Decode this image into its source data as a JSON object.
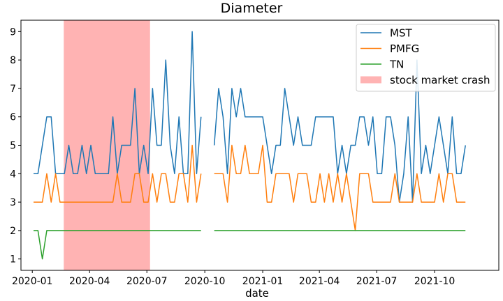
{
  "chart_data": {
    "type": "line",
    "title": "Diameter",
    "xlabel": "date",
    "ylabel": "",
    "ylim": [
      0.6,
      9.4
    ],
    "xlim": [
      "2019-12-14",
      "2022-01-11"
    ],
    "yticks": [
      1,
      2,
      3,
      4,
      5,
      6,
      7,
      8,
      9
    ],
    "xticks": [
      "2020-01",
      "2020-04",
      "2020-07",
      "2020-10",
      "2021-01",
      "2021-04",
      "2021-07",
      "2021-10"
    ],
    "grid": false,
    "legend_position": "top-right",
    "shaded_regions": [
      {
        "name": "stock market crash",
        "start": "2020-02-20",
        "end": "2020-07-06",
        "color": "#ffb3b3"
      }
    ],
    "series": [
      {
        "name": "MST",
        "color": "#1f77b4",
        "segments": [
          [
            [
              "2020-01-03",
              4
            ],
            [
              "2020-01-10",
              4
            ],
            [
              "2020-01-17",
              5
            ],
            [
              "2020-01-24",
              6
            ],
            [
              "2020-01-31",
              6
            ],
            [
              "2020-02-07",
              4
            ],
            [
              "2020-02-14",
              4
            ],
            [
              "2020-02-21",
              4
            ],
            [
              "2020-02-28",
              5
            ],
            [
              "2020-03-06",
              4
            ],
            [
              "2020-03-13",
              4
            ],
            [
              "2020-03-20",
              5
            ],
            [
              "2020-03-27",
              4
            ],
            [
              "2020-04-03",
              5
            ],
            [
              "2020-04-10",
              4
            ],
            [
              "2020-04-17",
              4
            ],
            [
              "2020-04-24",
              4
            ],
            [
              "2020-05-01",
              4
            ],
            [
              "2020-05-08",
              6
            ],
            [
              "2020-05-15",
              4
            ],
            [
              "2020-05-22",
              5
            ],
            [
              "2020-05-29",
              5
            ],
            [
              "2020-06-05",
              5
            ],
            [
              "2020-06-12",
              7
            ],
            [
              "2020-06-19",
              4
            ],
            [
              "2020-06-26",
              5
            ],
            [
              "2020-07-03",
              4
            ],
            [
              "2020-07-10",
              7
            ],
            [
              "2020-07-17",
              5
            ],
            [
              "2020-07-24",
              5
            ],
            [
              "2020-07-31",
              8
            ],
            [
              "2020-08-07",
              5
            ],
            [
              "2020-08-14",
              4
            ],
            [
              "2020-08-21",
              6
            ],
            [
              "2020-08-28",
              4
            ],
            [
              "2020-09-04",
              4
            ],
            [
              "2020-09-11",
              9
            ],
            [
              "2020-09-18",
              4
            ],
            [
              "2020-09-25",
              6
            ]
          ],
          [
            [
              "2020-10-16",
              5
            ],
            [
              "2020-10-23",
              7
            ],
            [
              "2020-10-30",
              6
            ],
            [
              "2020-11-06",
              4
            ],
            [
              "2020-11-13",
              7
            ],
            [
              "2020-11-20",
              6
            ],
            [
              "2020-11-27",
              7
            ],
            [
              "2020-12-04",
              6
            ],
            [
              "2020-12-11",
              6
            ],
            [
              "2020-12-18",
              6
            ],
            [
              "2020-12-25",
              6
            ],
            [
              "2021-01-01",
              6
            ],
            [
              "2021-01-08",
              5
            ],
            [
              "2021-01-15",
              4
            ],
            [
              "2021-01-22",
              5
            ],
            [
              "2021-01-29",
              5
            ],
            [
              "2021-02-05",
              7
            ],
            [
              "2021-02-12",
              6
            ],
            [
              "2021-02-19",
              5
            ],
            [
              "2021-02-26",
              6
            ],
            [
              "2021-03-05",
              5
            ],
            [
              "2021-03-12",
              5
            ],
            [
              "2021-03-19",
              5
            ],
            [
              "2021-03-26",
              6
            ],
            [
              "2021-04-02",
              6
            ],
            [
              "2021-04-09",
              6
            ],
            [
              "2021-04-16",
              6
            ],
            [
              "2021-04-23",
              6
            ],
            [
              "2021-04-30",
              4
            ],
            [
              "2021-05-07",
              5
            ],
            [
              "2021-05-14",
              4
            ],
            [
              "2021-05-21",
              5
            ],
            [
              "2021-05-28",
              5
            ],
            [
              "2021-06-04",
              6
            ],
            [
              "2021-06-11",
              6
            ],
            [
              "2021-06-18",
              5
            ],
            [
              "2021-06-25",
              6
            ],
            [
              "2021-07-02",
              4
            ],
            [
              "2021-07-09",
              4
            ],
            [
              "2021-07-16",
              6
            ],
            [
              "2021-07-23",
              6
            ],
            [
              "2021-07-30",
              5
            ],
            [
              "2021-08-06",
              3
            ],
            [
              "2021-08-13",
              4
            ],
            [
              "2021-08-20",
              6
            ],
            [
              "2021-08-27",
              3
            ],
            [
              "2021-09-03",
              8
            ],
            [
              "2021-09-10",
              4
            ],
            [
              "2021-09-17",
              5
            ],
            [
              "2021-09-24",
              4
            ],
            [
              "2021-10-01",
              5
            ],
            [
              "2021-10-08",
              6
            ],
            [
              "2021-10-15",
              5
            ],
            [
              "2021-10-22",
              4
            ],
            [
              "2021-10-29",
              6
            ],
            [
              "2021-11-05",
              4
            ],
            [
              "2021-11-12",
              4
            ],
            [
              "2021-11-19",
              5
            ]
          ]
        ]
      },
      {
        "name": "PMFG",
        "color": "#ff7f0e",
        "segments": [
          [
            [
              "2020-01-03",
              3
            ],
            [
              "2020-01-10",
              3
            ],
            [
              "2020-01-17",
              3
            ],
            [
              "2020-01-24",
              4
            ],
            [
              "2020-01-31",
              3
            ],
            [
              "2020-02-07",
              4
            ],
            [
              "2020-02-14",
              3
            ],
            [
              "2020-02-21",
              3
            ],
            [
              "2020-02-28",
              3
            ],
            [
              "2020-03-06",
              3
            ],
            [
              "2020-03-13",
              3
            ],
            [
              "2020-03-20",
              3
            ],
            [
              "2020-03-27",
              3
            ],
            [
              "2020-04-03",
              3
            ],
            [
              "2020-04-10",
              3
            ],
            [
              "2020-04-17",
              3
            ],
            [
              "2020-04-24",
              3
            ],
            [
              "2020-05-01",
              3
            ],
            [
              "2020-05-08",
              3
            ],
            [
              "2020-05-15",
              4
            ],
            [
              "2020-05-22",
              3
            ],
            [
              "2020-05-29",
              3
            ],
            [
              "2020-06-05",
              3
            ],
            [
              "2020-06-12",
              4
            ],
            [
              "2020-06-19",
              4
            ],
            [
              "2020-06-26",
              3
            ],
            [
              "2020-07-03",
              3
            ],
            [
              "2020-07-10",
              4
            ],
            [
              "2020-07-17",
              3
            ],
            [
              "2020-07-24",
              4
            ],
            [
              "2020-07-31",
              4
            ],
            [
              "2020-08-07",
              3
            ],
            [
              "2020-08-14",
              3
            ],
            [
              "2020-08-21",
              4
            ],
            [
              "2020-08-28",
              4
            ],
            [
              "2020-09-04",
              3
            ],
            [
              "2020-09-11",
              5
            ],
            [
              "2020-09-18",
              3
            ],
            [
              "2020-09-25",
              4
            ]
          ],
          [
            [
              "2020-10-16",
              4
            ],
            [
              "2020-10-23",
              4
            ],
            [
              "2020-10-30",
              4
            ],
            [
              "2020-11-06",
              3
            ],
            [
              "2020-11-13",
              5
            ],
            [
              "2020-11-20",
              4
            ],
            [
              "2020-11-27",
              4
            ],
            [
              "2020-12-04",
              5
            ],
            [
              "2020-12-11",
              4
            ],
            [
              "2020-12-18",
              4
            ],
            [
              "2020-12-25",
              4
            ],
            [
              "2021-01-01",
              5
            ],
            [
              "2021-01-08",
              3
            ],
            [
              "2021-01-15",
              3
            ],
            [
              "2021-01-22",
              4
            ],
            [
              "2021-01-29",
              4
            ],
            [
              "2021-02-05",
              4
            ],
            [
              "2021-02-12",
              4
            ],
            [
              "2021-02-19",
              3
            ],
            [
              "2021-02-26",
              4
            ],
            [
              "2021-03-05",
              4
            ],
            [
              "2021-03-12",
              4
            ],
            [
              "2021-03-19",
              3
            ],
            [
              "2021-03-26",
              3
            ],
            [
              "2021-04-02",
              4
            ],
            [
              "2021-04-09",
              3
            ],
            [
              "2021-04-16",
              4
            ],
            [
              "2021-04-23",
              3
            ],
            [
              "2021-04-30",
              4
            ],
            [
              "2021-05-07",
              3
            ],
            [
              "2021-05-14",
              4
            ],
            [
              "2021-05-21",
              3
            ],
            [
              "2021-05-28",
              2
            ],
            [
              "2021-06-04",
              4
            ],
            [
              "2021-06-11",
              4
            ],
            [
              "2021-06-18",
              4
            ],
            [
              "2021-06-25",
              3
            ],
            [
              "2021-07-02",
              3
            ],
            [
              "2021-07-09",
              3
            ],
            [
              "2021-07-16",
              3
            ],
            [
              "2021-07-23",
              3
            ],
            [
              "2021-07-30",
              4
            ],
            [
              "2021-08-06",
              3
            ],
            [
              "2021-08-13",
              3
            ],
            [
              "2021-08-20",
              3
            ],
            [
              "2021-08-27",
              3
            ],
            [
              "2021-09-03",
              4
            ],
            [
              "2021-09-10",
              3
            ],
            [
              "2021-09-17",
              3
            ],
            [
              "2021-09-24",
              3
            ],
            [
              "2021-10-01",
              3
            ],
            [
              "2021-10-08",
              4
            ],
            [
              "2021-10-15",
              3
            ],
            [
              "2021-10-22",
              4
            ],
            [
              "2021-10-29",
              4
            ],
            [
              "2021-11-05",
              3
            ],
            [
              "2021-11-12",
              3
            ],
            [
              "2021-11-19",
              3
            ]
          ]
        ]
      },
      {
        "name": "TN",
        "color": "#2ca02c",
        "segments": [
          [
            [
              "2020-01-03",
              2
            ],
            [
              "2020-01-10",
              2
            ],
            [
              "2020-01-17",
              1
            ],
            [
              "2020-01-24",
              2
            ],
            [
              "2020-01-31",
              2
            ],
            [
              "2020-09-25",
              2
            ]
          ],
          [
            [
              "2020-10-16",
              2
            ],
            [
              "2021-11-19",
              2
            ]
          ]
        ]
      }
    ],
    "legend_entries": [
      "MST",
      "PMFG",
      "TN",
      "stock market crash"
    ]
  }
}
